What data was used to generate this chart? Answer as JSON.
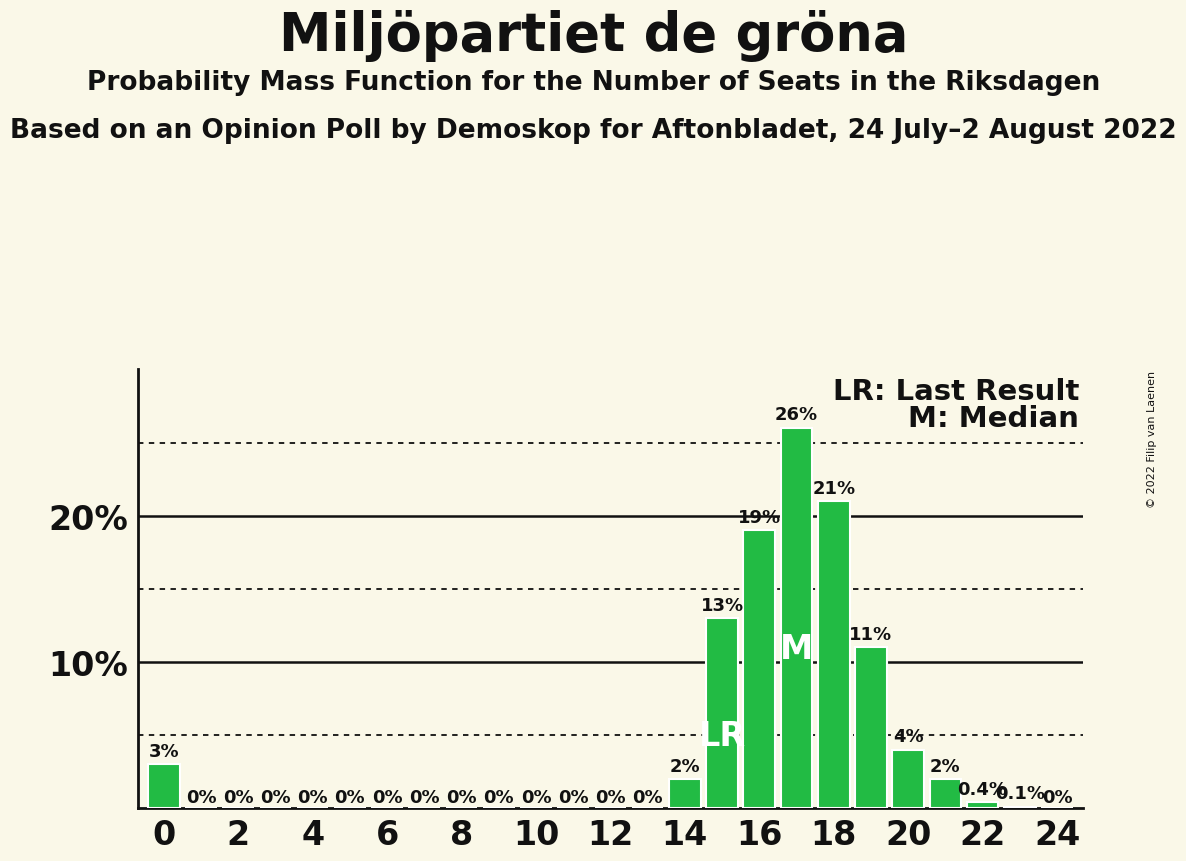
{
  "title": "Miljöpartiet de gröna",
  "subtitle1": "Probability Mass Function for the Number of Seats in the Riksdagen",
  "subtitle2": "Based on an Opinion Poll by Demoskop for Aftonbladet, 24 July–2 August 2022",
  "copyright": "© 2022 Filip van Laenen",
  "background_color": "#faf8e8",
  "bar_color": "#22bb44",
  "bar_edge_color": "#ffffff",
  "seats": [
    0,
    1,
    2,
    3,
    4,
    5,
    6,
    7,
    8,
    9,
    10,
    11,
    12,
    13,
    14,
    15,
    16,
    17,
    18,
    19,
    20,
    21,
    22,
    23,
    24
  ],
  "probabilities": [
    3,
    0,
    0,
    0,
    0,
    0,
    0,
    0,
    0,
    0,
    0,
    0,
    0,
    0,
    2,
    13,
    19,
    26,
    21,
    11,
    4,
    2,
    0.4,
    0.1,
    0
  ],
  "ylim": [
    0,
    30
  ],
  "solid_lines": [
    10,
    20
  ],
  "dotted_lines": [
    5,
    15,
    25
  ],
  "LR_seat": 15,
  "M_seat": 17,
  "legend_LR": "LR: Last Result",
  "legend_M": "M: Median",
  "xlabel_fontsize": 24,
  "ylabel_fontsize": 24,
  "title_fontsize": 38,
  "subtitle1_fontsize": 19,
  "subtitle2_fontsize": 19,
  "bar_label_fontsize": 13,
  "legend_fontsize": 21,
  "inbar_fontsize": 24,
  "axis_label_color": "#111111",
  "zero_label_threshold": 0.05
}
